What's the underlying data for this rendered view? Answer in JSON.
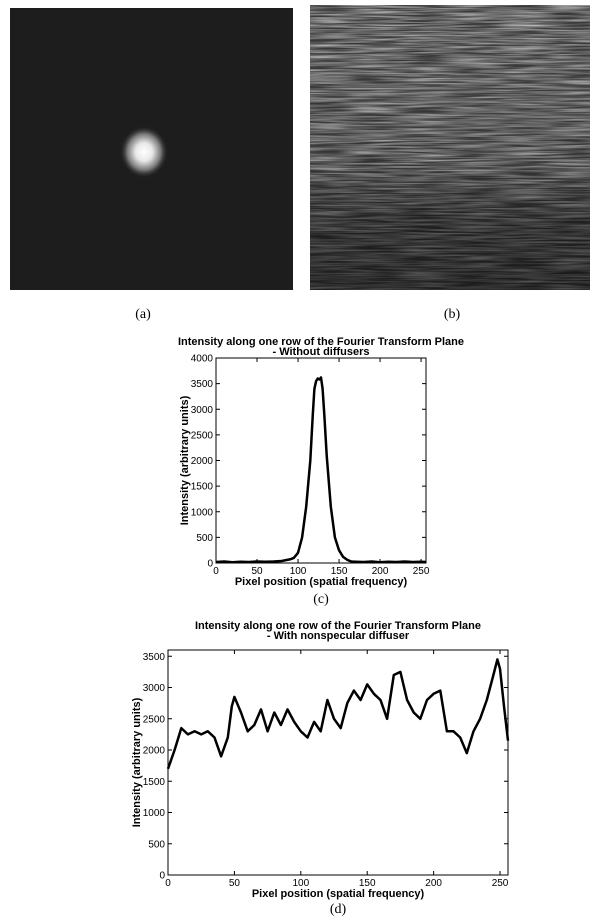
{
  "figure": {
    "panel_labels": [
      "(a)",
      "(b)"
    ]
  },
  "chart_data": [
    {
      "type": "line",
      "title": [
        "Intensity along one row of the Fourier Transform Plane",
        "- Without diffusers"
      ],
      "x_label": "Pixel position (spatial frequency)",
      "y_label": "Intensity (arbitrary units)",
      "caption": "(c)",
      "x": [
        0,
        10,
        20,
        30,
        40,
        50,
        60,
        70,
        80,
        90,
        95,
        100,
        105,
        110,
        115,
        118,
        120,
        122,
        124,
        126,
        128,
        130,
        132,
        135,
        140,
        145,
        150,
        155,
        160,
        165,
        170,
        180,
        190,
        200,
        210,
        220,
        230,
        240,
        250,
        256
      ],
      "series": [
        {
          "color": "#000000",
          "values": [
            20,
            30,
            15,
            25,
            20,
            30,
            25,
            30,
            40,
            70,
            100,
            200,
            500,
            1100,
            2000,
            2900,
            3400,
            3550,
            3600,
            3580,
            3620,
            3400,
            2900,
            2100,
            1100,
            500,
            250,
            120,
            60,
            30,
            25,
            20,
            30,
            15,
            25,
            20,
            30,
            20,
            25,
            20
          ]
        }
      ],
      "xlim": [
        0,
        256
      ],
      "ylim": [
        0,
        4000
      ],
      "xticks": [
        0,
        50,
        100,
        150,
        200,
        250
      ],
      "yticks": [
        0,
        500,
        1000,
        1500,
        2000,
        2500,
        3000,
        3500,
        4000
      ]
    },
    {
      "type": "line",
      "title": [
        "Intensity along one row of the Fourier Transform Plane",
        "- With nonspecular diffuser"
      ],
      "x_label": "Pixel position (spatial frequency)",
      "y_label": "Intensity (arbitrary units)",
      "caption": "(d)",
      "x": [
        0,
        5,
        10,
        15,
        20,
        25,
        30,
        35,
        40,
        45,
        48,
        50,
        55,
        60,
        65,
        70,
        75,
        80,
        85,
        90,
        95,
        100,
        105,
        110,
        115,
        120,
        125,
        130,
        135,
        140,
        145,
        150,
        155,
        160,
        165,
        170,
        175,
        180,
        185,
        190,
        195,
        200,
        205,
        210,
        215,
        220,
        225,
        230,
        235,
        240,
        245,
        248,
        250,
        253,
        256
      ],
      "series": [
        {
          "color": "#000000",
          "values": [
            1700,
            2000,
            2350,
            2250,
            2300,
            2250,
            2300,
            2200,
            1900,
            2200,
            2700,
            2850,
            2600,
            2300,
            2400,
            2650,
            2300,
            2600,
            2400,
            2650,
            2450,
            2300,
            2200,
            2450,
            2300,
            2800,
            2500,
            2350,
            2750,
            2950,
            2800,
            3050,
            2900,
            2800,
            2500,
            3200,
            3250,
            2800,
            2600,
            2500,
            2800,
            2900,
            2950,
            2300,
            2300,
            2200,
            1950,
            2300,
            2500,
            2800,
            3200,
            3450,
            3300,
            2700,
            2150
          ]
        }
      ],
      "xlim": [
        0,
        256
      ],
      "ylim": [
        0,
        3600
      ],
      "xticks": [
        0,
        50,
        100,
        150,
        200,
        250
      ],
      "yticks": [
        0,
        500,
        1000,
        1500,
        2000,
        2500,
        3000,
        3500
      ]
    }
  ]
}
